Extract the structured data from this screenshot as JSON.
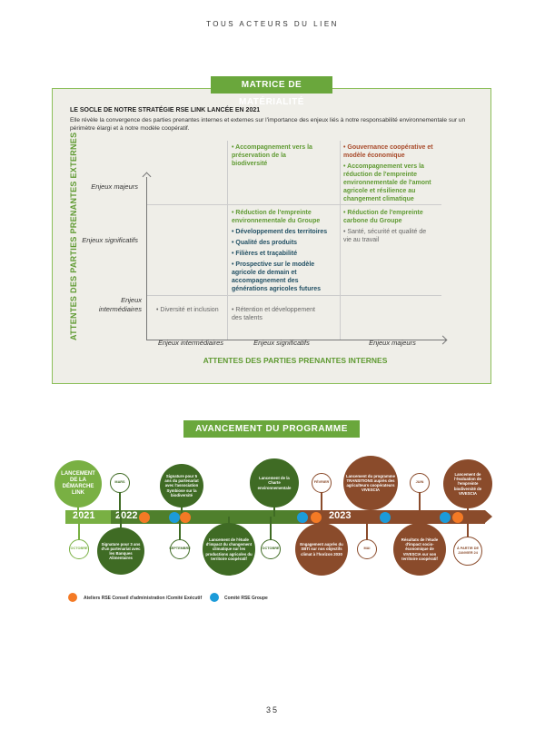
{
  "header": {
    "title": "TOUS ACTEURS DU LIEN"
  },
  "matrix": {
    "badge": "MATRICE DE MATÉRIALITÉ",
    "title": "LE SOCLE DE NOTRE STRATÉGIE RSE LINK LANCÉE EN 2021",
    "description": "Elle révèle la convergence des parties prenantes internes et externes sur l'importance des enjeux liés à notre responsabilité environnementale sur un périmètre élargi et à notre modèle coopératif.",
    "y_axis_title": "ATTENTES DES PARTIES PRENANTES EXTERNES",
    "x_axis_title": "ATTENTES DES PARTIES PRENANTES INTERNES",
    "y_levels": [
      "Enjeux majeurs",
      "Enjeux significatifs",
      "Enjeux intermédiaires"
    ],
    "x_levels": [
      "Enjeux intermédiaires",
      "Enjeux significatifs",
      "Enjeux majeurs"
    ],
    "cells": {
      "major_sig": [
        "• Accompagnement vers la préservation de la biodiversité"
      ],
      "major_major": [
        "• Gouvernance coopérative et modèle économique",
        "• Accompagnement vers la réduction de l'empreinte environnementale de l'amont agricole et résilience au changement climatique"
      ],
      "sig_sig": [
        "• Réduction de l'empreinte environnementale du Groupe",
        "• Développement des territoires",
        "• Qualité des produits",
        "• Filières et traçabilité",
        "• Prospective sur le modèle agricole de demain et accompagnement des générations agricoles futures"
      ],
      "sig_major": [
        "• Réduction de l'empreinte carbone du Groupe",
        "• Santé, sécurité et qualité de vie au travail"
      ],
      "int_int": [
        "• Diversité et inclusion"
      ],
      "int_sig": [
        "• Rétention et développement des talents"
      ]
    },
    "colors": {
      "green": "#5f9a32",
      "blue": "#235165",
      "red": "#a84a2a",
      "grey": "#666666"
    }
  },
  "timeline": {
    "badge": "AVANCEMENT DU PROGRAMME LINK",
    "years": [
      "2021",
      "2022",
      "2023"
    ],
    "events": [
      "LANCEMENT DE LA DÉMARCHE LINK",
      "MARS",
      "Signature pour 5 ans du partenariat avec l'association Symbiose sur la biodiversité",
      "Lancement de la Charte environnementale",
      "FÉVRIER",
      "Lancement du programme TRANSITIONS auprès des agriculteurs coopérateurs VIVESCIA",
      "JUIN",
      "Lancement de l'évaluation de l'empreinte biodiversité de VIVESCIA",
      "OCTOBRE",
      "Signature pour 3 ans d'un partenariat avec les Banques Alimentaires",
      "SEPTEMBRE",
      "Lancement de l'étude d'impact du changement climatique sur les productions agricoles du territoire coopératif",
      "OCTOBRE",
      "Engagement auprès du SBTi sur nos objectifs climat à l'horizon 2030",
      "MAI",
      "Résultats de l'étude d'impact socio-économique de VIVESCIA sur son territoire coopératif",
      "À PARTIR DE JANVIER 24"
    ],
    "legend": [
      "Ateliers RSE Conseil d'administration /Comité Exécutif",
      "Comité RSE Groupe"
    ],
    "colors": {
      "light_green": "#79b043",
      "dark_green": "#3f6b24",
      "brown": "#8a4b2b",
      "orange": "#f47a25",
      "blue": "#1c9bd9"
    }
  },
  "page_number": "35"
}
